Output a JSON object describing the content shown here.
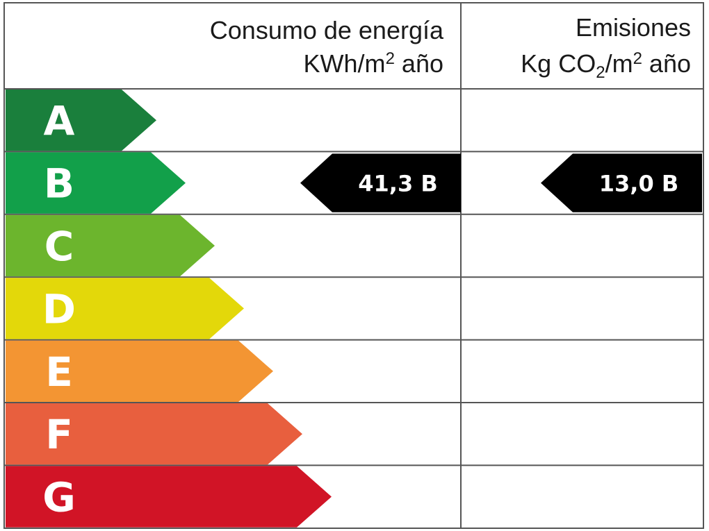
{
  "header": {
    "energy_line1": "Consumo de energía",
    "energy_unit_a": "KWh/m",
    "energy_unit_sup": "2",
    "energy_unit_b": " año",
    "emissions_line1": "Emisiones",
    "emissions_unit_a": "Kg CO",
    "emissions_unit_sub": "2",
    "emissions_unit_b": "/m",
    "emissions_unit_sup": "2",
    "emissions_unit_c": " año"
  },
  "classes": [
    {
      "letter": "A",
      "color": "#1a7f3c"
    },
    {
      "letter": "B",
      "color": "#12a04a"
    },
    {
      "letter": "C",
      "color": "#6cb52d"
    },
    {
      "letter": "D",
      "color": "#e3d80a"
    },
    {
      "letter": "E",
      "color": "#f39533"
    },
    {
      "letter": "F",
      "color": "#e85f3e"
    },
    {
      "letter": "G",
      "color": "#d11426"
    }
  ],
  "ratings": {
    "energy": {
      "text": "41,3 B",
      "class": "B"
    },
    "emissions": {
      "text": "13,0 B",
      "class": "B"
    }
  }
}
